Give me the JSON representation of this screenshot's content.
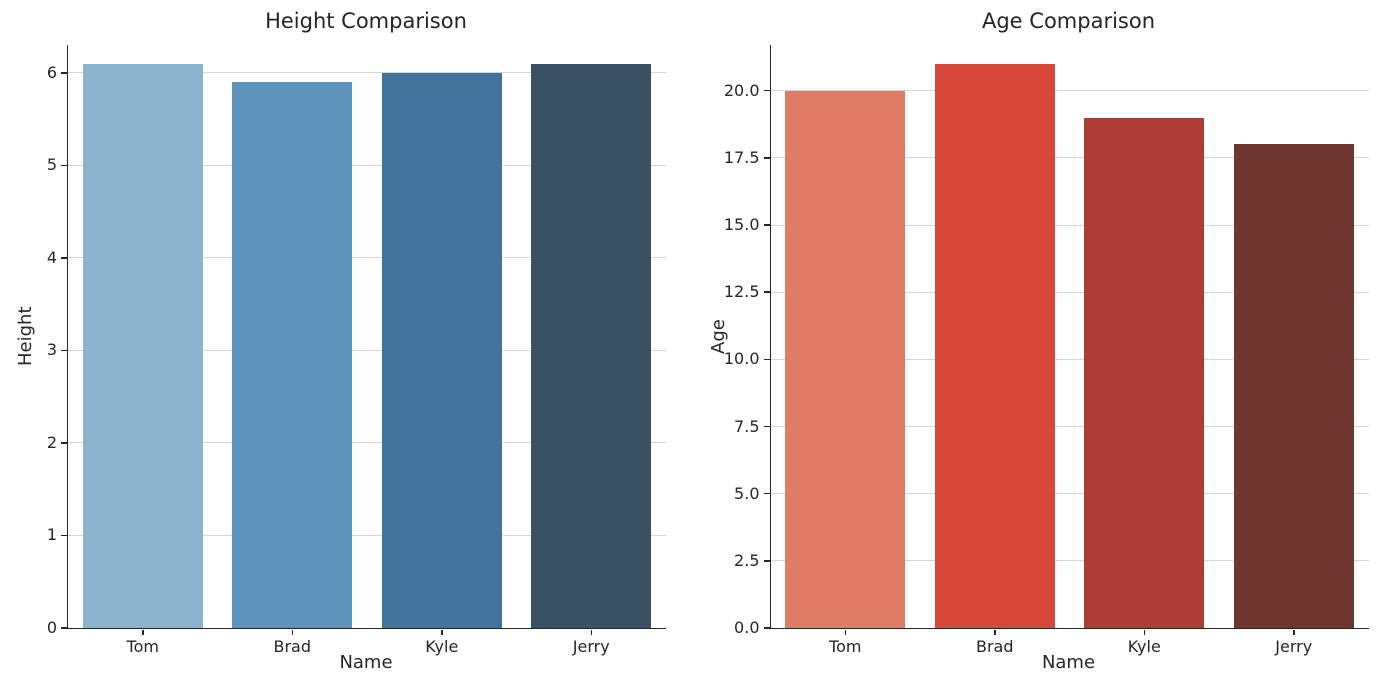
{
  "styles": {
    "background": "#ffffff",
    "grid_color": "#d6d6d6",
    "spine_color": "#262626",
    "text_color": "#262626"
  },
  "chart_data": [
    {
      "type": "bar",
      "title": "Height Comparison",
      "xlabel": "Name",
      "ylabel": "Height",
      "categories": [
        "Tom",
        "Brad",
        "Kyle",
        "Jerry"
      ],
      "values": [
        6.1,
        5.9,
        6.0,
        6.1
      ],
      "bar_colors": [
        "#8cb3ce",
        "#5e94bc",
        "#40749b",
        "#3a5064"
      ],
      "ylim": [
        0,
        6.3
      ],
      "yticks": [
        0,
        1,
        2,
        3,
        4,
        5,
        6
      ],
      "ytick_labels": [
        "0",
        "1",
        "2",
        "3",
        "4",
        "5",
        "6"
      ],
      "grid": "horizontal",
      "legend": "none"
    },
    {
      "type": "bar",
      "title": "Age Comparison",
      "xlabel": "Name",
      "ylabel": "Age",
      "categories": [
        "Tom",
        "Brad",
        "Kyle",
        "Jerry"
      ],
      "values": [
        20,
        21,
        19,
        18
      ],
      "bar_colors": [
        "#e07b65",
        "#d8483a",
        "#ae3d36",
        "#6f3630"
      ],
      "ylim": [
        0,
        21.7
      ],
      "yticks": [
        0,
        2.5,
        5,
        7.5,
        10,
        12.5,
        15,
        17.5,
        20
      ],
      "ytick_labels": [
        "0.0",
        "2.5",
        "5.0",
        "7.5",
        "10.0",
        "12.5",
        "15.0",
        "17.5",
        "20.0"
      ],
      "grid": "horizontal",
      "legend": "none"
    }
  ]
}
